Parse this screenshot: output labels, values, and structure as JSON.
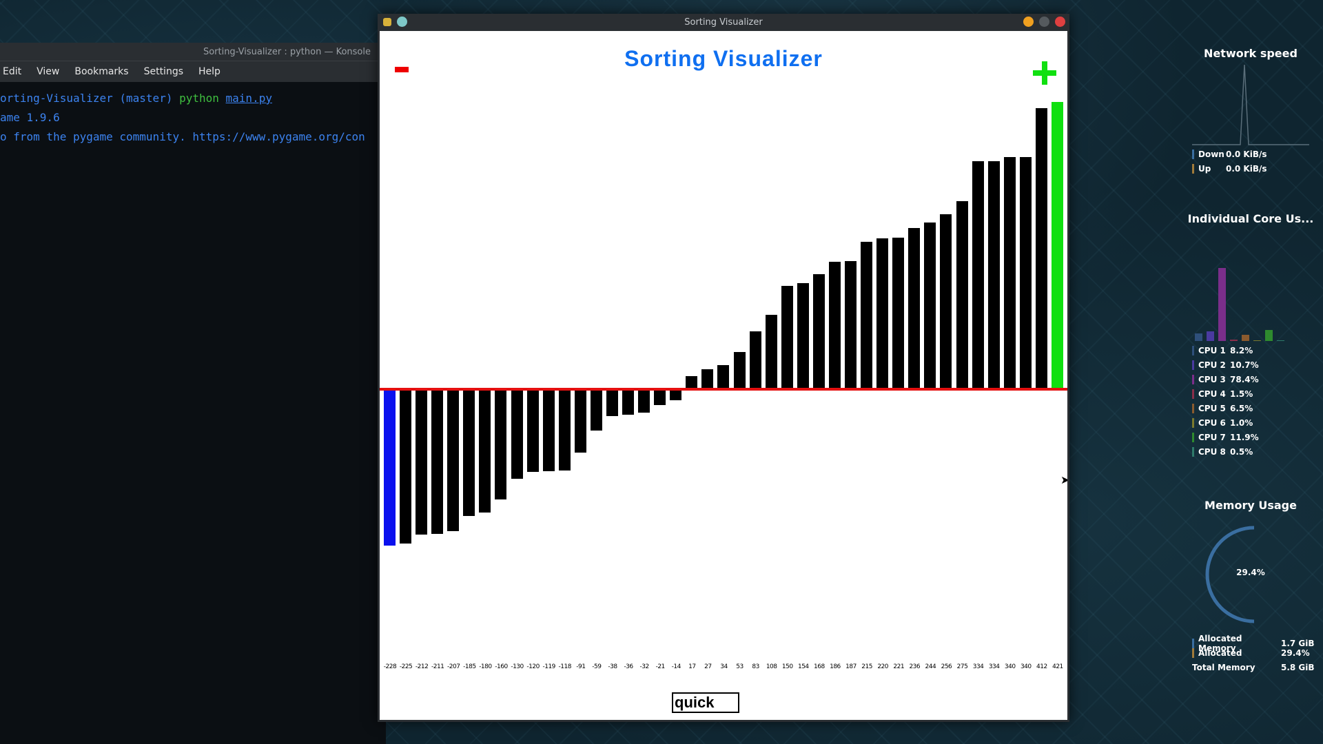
{
  "konsole": {
    "title": "Sorting-Visualizer : python — Konsole",
    "menu": [
      "Edit",
      "View",
      "Bookmarks",
      "Settings",
      "Help"
    ],
    "prompt": "orting-Visualizer (master)",
    "command": "python",
    "file": "main.py",
    "line2": "ame 1.9.6",
    "line3": "o from the pygame community. https://www.pygame.org/con"
  },
  "window": {
    "title": "Sorting Visualizer",
    "app_title": "Sorting Visualizer",
    "algorithm": "quick"
  },
  "chart_data": {
    "type": "bar",
    "values": [
      -228,
      -225,
      -212,
      -211,
      -207,
      -185,
      -180,
      -160,
      -130,
      -120,
      -119,
      -118,
      -91,
      -59,
      -38,
      -36,
      -32,
      -21,
      -14,
      17,
      27,
      34,
      53,
      83,
      108,
      150,
      154,
      168,
      186,
      187,
      215,
      220,
      221,
      236,
      244,
      256,
      275,
      334,
      334,
      340,
      340,
      412,
      421
    ],
    "highlight": {
      "blue_index": 0,
      "green_index": 42
    },
    "colors": {
      "default": "#000000",
      "blue": "#0a10ee",
      "green": "#10e010",
      "zero_line": "#e51010"
    }
  },
  "monitor": {
    "network_title": "Network speed",
    "down_label": "Down",
    "down_value": "0.0 KiB/s",
    "up_label": "Up",
    "up_value": "0.0 KiB/s",
    "cores_title": "Individual Core Us...",
    "cpus": [
      {
        "label": "CPU 1",
        "value": "8.2%",
        "color": "#2e4f7a"
      },
      {
        "label": "CPU 2",
        "value": "10.7%",
        "color": "#4a3aa0"
      },
      {
        "label": "CPU 3",
        "value": "78.4%",
        "color": "#7a2e8a"
      },
      {
        "label": "CPU 4",
        "value": "1.5%",
        "color": "#8a2e4a"
      },
      {
        "label": "CPU 5",
        "value": "6.5%",
        "color": "#8a5a2e"
      },
      {
        "label": "CPU 6",
        "value": "1.0%",
        "color": "#7a7a2e"
      },
      {
        "label": "CPU 7",
        "value": "11.9%",
        "color": "#2e8a2e"
      },
      {
        "label": "CPU 8",
        "value": "0.5%",
        "color": "#2e7a6a"
      }
    ],
    "memory_title": "Memory Usage",
    "memory_percent": "29.4%",
    "allocated_memory_label": "Allocated Memory",
    "allocated_memory_value": "1.7 GiB",
    "allocated_label": "Allocated",
    "allocated_value": "29.4%",
    "total_memory_label": "Total Memory",
    "total_memory_value": "5.8 GiB"
  }
}
